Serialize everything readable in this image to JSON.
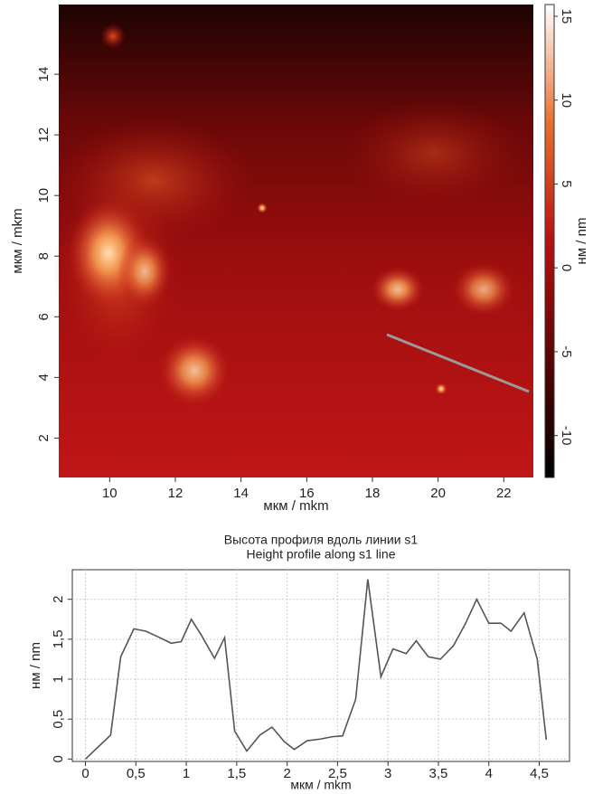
{
  "chart_data": [
    {
      "type": "heatmap",
      "xlabel": "мкм / mkm",
      "ylabel": "мкм / mkm",
      "xlim": [
        8.45,
        22.9
      ],
      "xticks": [
        10,
        12,
        14,
        16,
        18,
        20,
        22
      ],
      "ylim": [
        0.7,
        16.3
      ],
      "yticks": [
        2,
        4,
        6,
        8,
        10,
        12,
        14
      ],
      "colormap": [
        "#000000",
        "#5a0404",
        "#b81010",
        "#e8702e",
        "#ffffff"
      ],
      "colorbar": {
        "label": "нм / nm",
        "lim": [
          -12.5,
          15.7
        ],
        "ticks": [
          -10,
          -5,
          0,
          5,
          10,
          15
        ]
      }
    },
    {
      "type": "line",
      "title": "Высота профиля вдоль линии s1",
      "subtitle": "Height profile along s1 line",
      "xlabel": "мкм / mkm",
      "ylabel": "нм / nm",
      "xlim": [
        -0.13,
        4.8
      ],
      "xticks": [
        0,
        {
          "value": 0.5,
          "label": "0,5"
        },
        1,
        {
          "value": 1.5,
          "label": "1,5"
        },
        2,
        {
          "value": 2.5,
          "label": "2,5"
        },
        3,
        {
          "value": 3.5,
          "label": "3,5"
        },
        4,
        {
          "value": 4.5,
          "label": "4,5"
        }
      ],
      "ylim": [
        -0.03,
        2.37
      ],
      "yticks": [
        0,
        {
          "value": 0.5,
          "label": "0,5"
        },
        1,
        {
          "value": 1.5,
          "label": "1,5"
        },
        2
      ],
      "grid": true,
      "color": "#555555",
      "x": [
        0.0,
        0.25,
        0.35,
        0.48,
        0.6,
        0.72,
        0.85,
        0.95,
        1.05,
        1.15,
        1.28,
        1.38,
        1.48,
        1.6,
        1.73,
        1.85,
        1.97,
        2.07,
        2.2,
        2.33,
        2.45,
        2.55,
        2.68,
        2.8,
        2.93,
        3.05,
        3.18,
        3.28,
        3.4,
        3.52,
        3.65,
        3.77,
        3.88,
        4.0,
        4.12,
        4.22,
        4.35,
        4.48,
        4.57
      ],
      "values": [
        0.0,
        0.3,
        1.28,
        1.63,
        1.6,
        1.53,
        1.45,
        1.47,
        1.75,
        1.55,
        1.26,
        1.52,
        0.35,
        0.1,
        0.3,
        0.4,
        0.22,
        0.12,
        0.23,
        0.25,
        0.28,
        0.29,
        0.75,
        2.25,
        1.03,
        1.38,
        1.32,
        1.48,
        1.28,
        1.25,
        1.42,
        1.7,
        2.0,
        1.7,
        1.7,
        1.6,
        1.83,
        1.25,
        0.24
      ]
    }
  ]
}
